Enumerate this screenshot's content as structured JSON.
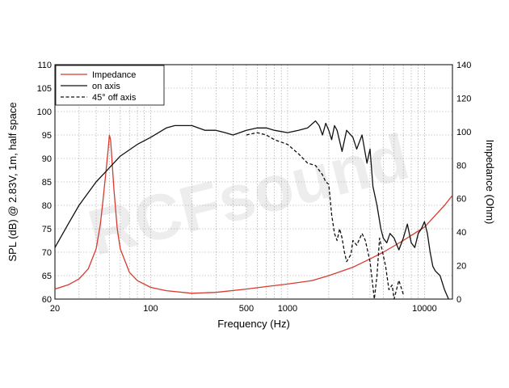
{
  "watermark": "RCFsound",
  "chart_data": {
    "type": "line",
    "xlabel": "Frequency (Hz)",
    "ylabel": "SPL (dB) @ 2.83V, 1m, half space",
    "y2label": "Impedance (Ohm)",
    "xscale": "log",
    "xlim": [
      20,
      16000
    ],
    "ylim": [
      60,
      110
    ],
    "y2lim": [
      0,
      140
    ],
    "grid": true,
    "legend_position": "top-left",
    "x_ticks": [
      {
        "value": 20,
        "label": "20"
      },
      {
        "value": 100,
        "label": "100"
      },
      {
        "value": 500,
        "label": "500"
      },
      {
        "value": 1000,
        "label": "1000"
      },
      {
        "value": 10000,
        "label": "10000"
      }
    ],
    "y_ticks": [
      60,
      65,
      70,
      75,
      80,
      85,
      90,
      95,
      100,
      105,
      110
    ],
    "y2_ticks": [
      0,
      20,
      40,
      60,
      80,
      100,
      120,
      140
    ],
    "series": [
      {
        "name": "Impedance",
        "axis": "right",
        "color": "#d83a2e",
        "dash": "solid",
        "x": [
          20,
          25,
          30,
          35,
          40,
          43,
          45,
          47,
          49,
          50,
          51,
          52,
          54,
          57,
          60,
          70,
          80,
          100,
          130,
          200,
          300,
          500,
          700,
          1000,
          1500,
          2000,
          3000,
          4000,
          5000,
          7000,
          10000,
          12000,
          14000,
          16000
        ],
        "y": [
          6,
          8.5,
          12,
          18,
          30,
          45,
          60,
          75,
          90,
          98,
          95,
          85,
          65,
          42,
          30,
          16,
          11,
          7,
          5,
          3.5,
          4,
          6,
          7.5,
          9,
          11,
          14,
          19,
          24,
          28,
          35,
          43,
          50,
          56,
          62
        ]
      },
      {
        "name": "on axis",
        "axis": "left",
        "color": "#111111",
        "dash": "solid",
        "x": [
          20,
          25,
          30,
          40,
          50,
          60,
          80,
          100,
          130,
          150,
          200,
          250,
          300,
          350,
          400,
          500,
          600,
          700,
          800,
          1000,
          1200,
          1400,
          1600,
          1700,
          1800,
          1900,
          2000,
          2100,
          2200,
          2300,
          2500,
          2700,
          3000,
          3200,
          3500,
          3800,
          4000,
          4200,
          4500,
          4800,
          5000,
          5300,
          5600,
          6000,
          6500,
          7000,
          7500,
          8000,
          8500,
          9000,
          9500,
          10000,
          10500,
          11000,
          11500,
          12000,
          13000,
          14000,
          15000
        ],
        "y": [
          71,
          76,
          80,
          85,
          88,
          90.5,
          93,
          94.5,
          96.5,
          97,
          97,
          96,
          96,
          95.5,
          95,
          96,
          96.5,
          96.5,
          96,
          95.5,
          96,
          96.5,
          98,
          97,
          95,
          97.5,
          96,
          94,
          97,
          96,
          91.5,
          96,
          94.5,
          92,
          95,
          89,
          92,
          84,
          80,
          75,
          73,
          72,
          74,
          73,
          70.5,
          73,
          76,
          72,
          71,
          74,
          75,
          76.5,
          74,
          70,
          67,
          66,
          65,
          62,
          60
        ]
      },
      {
        "name": "45° off axis",
        "axis": "left",
        "color": "#111111",
        "dash": "dashed",
        "x": [
          500,
          600,
          700,
          800,
          1000,
          1200,
          1400,
          1600,
          1800,
          1900,
          2000,
          2100,
          2200,
          2300,
          2400,
          2500,
          2600,
          2700,
          2900,
          3000,
          3200,
          3500,
          3700,
          4000,
          4300,
          4500,
          4700,
          4900,
          5200,
          5500,
          5800,
          6000,
          6500,
          7000
        ],
        "y": [
          95,
          95.5,
          95,
          94,
          93,
          91,
          89,
          88.5,
          86.5,
          85,
          84.5,
          78,
          74,
          72.5,
          75,
          73,
          70,
          68,
          69.5,
          72.5,
          71.5,
          74,
          72.5,
          68,
          60,
          65,
          73,
          70.5,
          67,
          62,
          63,
          60,
          64,
          61
        ]
      }
    ]
  }
}
